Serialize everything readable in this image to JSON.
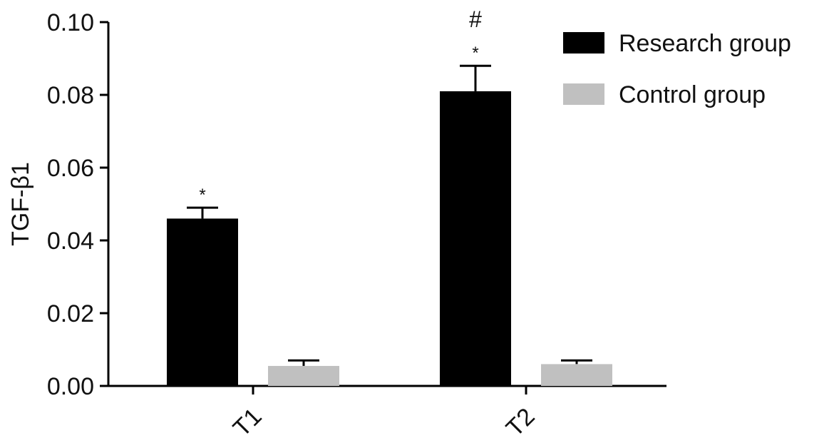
{
  "chart_data": {
    "type": "bar",
    "ylabel": "TGF-β1",
    "xlabel": "",
    "ylim": [
      0,
      0.1
    ],
    "yticks": [
      "0.00",
      "0.02",
      "0.04",
      "0.06",
      "0.08",
      "0.10"
    ],
    "categories": [
      "T1",
      "T2"
    ],
    "legend_position": "top-right",
    "series": [
      {
        "name": "Research group",
        "color": "#000000",
        "values": [
          0.046,
          0.081
        ],
        "errors": [
          0.003,
          0.007
        ],
        "annotations": [
          [
            "*"
          ],
          [
            "*",
            "#"
          ]
        ]
      },
      {
        "name": "Control group",
        "color": "#c0c0c0",
        "values": [
          0.0055,
          0.006
        ],
        "errors": [
          0.0015,
          0.001
        ],
        "annotations": [
          [],
          []
        ]
      }
    ]
  }
}
